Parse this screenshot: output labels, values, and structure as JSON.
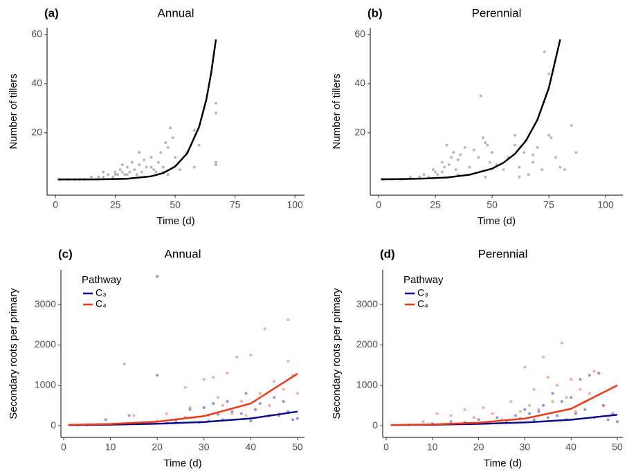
{
  "chart_data": [
    {
      "type": "scatter",
      "panel": "(a)",
      "title": "Annual",
      "xlabel": "Time (d)",
      "ylabel": "Number of tillers",
      "xlim": [
        -3.5,
        104
      ],
      "ylim": [
        -5.4,
        62.8
      ],
      "xticks": [
        0,
        25,
        50,
        75,
        100
      ],
      "yticks": [
        20,
        40,
        60
      ],
      "series": [
        {
          "color": "#000000",
          "point_color": "#7f7f7f",
          "points": {
            "x": [
              2,
              5,
              8,
              10,
              12,
              15,
              17,
              18,
              20,
              22,
              24,
              25,
              26,
              27,
              28,
              29,
              30,
              31,
              32,
              33,
              34,
              35,
              36,
              37,
              38,
              40,
              41,
              42,
              43,
              44,
              45,
              46,
              47,
              48,
              49,
              50,
              52,
              55,
              58,
              58,
              60,
              67,
              67,
              67,
              67,
              30,
              35,
              28,
              40,
              45,
              25,
              20,
              47
            ],
            "values": [
              1,
              1,
              1,
              1,
              1,
              2,
              1,
              2,
              2,
              3,
              2,
              4,
              3,
              5,
              4,
              3,
              6,
              4,
              8,
              5,
              3,
              7,
              4,
              9,
              6,
              10,
              5,
              4,
              8,
              12,
              6,
              16,
              14,
              22,
              18,
              10,
              5,
              12,
              6,
              21,
              15,
              32,
              28,
              8,
              7,
              3,
              12,
              7,
              6,
              4,
              3,
              4,
              3
            ]
          },
          "fit": {
            "x": [
              1,
              10,
              20,
              30,
              40,
              45,
              50,
              55,
              60,
              63,
              65,
              67
            ],
            "values": [
              1.0,
              1.0,
              1.08,
              1.32,
              2.3,
              3.6,
              6.3,
              11.6,
              22.4,
              33.5,
              44.1,
              58
            ]
          }
        }
      ]
    },
    {
      "type": "scatter",
      "panel": "(b)",
      "title": "Perennial",
      "xlabel": "Time (d)",
      "ylabel": "Number of tillers",
      "xlim": [
        -3.7,
        107.6
      ],
      "ylim": [
        -5.4,
        62.8
      ],
      "xticks": [
        0,
        25,
        50,
        75,
        100
      ],
      "yticks": [
        20,
        40,
        60
      ],
      "series": [
        {
          "color": "#000000",
          "point_color": "#7f7f7f",
          "points": {
            "x": [
              2,
              6,
              10,
              14,
              18,
              20,
              22,
              24,
              25,
              26,
              28,
              29,
              30,
              31,
              32,
              33,
              34,
              35,
              36,
              38,
              40,
              42,
              44,
              45,
              46,
              48,
              49,
              50,
              52,
              55,
              57,
              60,
              60,
              62,
              64,
              65,
              66,
              68,
              70,
              72,
              73,
              75,
              76,
              78,
              80,
              82,
              85,
              87,
              35,
              28,
              47,
              47,
              62,
              68,
              75
            ],
            "values": [
              1,
              1,
              1,
              2,
              2,
              3,
              2,
              5,
              4,
              3,
              8,
              6,
              15,
              7,
              10,
              12,
              5,
              9,
              11,
              14,
              6,
              13,
              10,
              35,
              18,
              15,
              8,
              12,
              7,
              5,
              10,
              19,
              15,
              6,
              12,
              17,
              3,
              8,
              14,
              5,
              53,
              44,
              18,
              10,
              6,
              5,
              23,
              12,
              3,
              4,
              16,
              2,
              2,
              11,
              19
            ]
          },
          "fit": {
            "x": [
              1,
              10,
              20,
              30,
              40,
              50,
              55,
              60,
              65,
              70,
              75,
              80
            ],
            "values": [
              1.07,
              1.15,
              1.35,
              1.8,
              2.9,
              5.4,
              7.8,
              11.4,
              16.9,
              25.4,
              38.3,
              58
            ]
          }
        }
      ]
    },
    {
      "type": "scatter",
      "panel": "(c)",
      "title": "Annual",
      "xlabel": "Time (d)",
      "ylabel": "Secondary roots per primary",
      "xlim": [
        -0.6,
        51.5
      ],
      "ylim": [
        -290,
        3860
      ],
      "xticks": [
        0,
        10,
        20,
        30,
        40,
        50
      ],
      "yticks": [
        0,
        1000,
        2000,
        3000
      ],
      "legend_title": "Pathway",
      "legend_position": "top-left",
      "series": [
        {
          "name": "C₃",
          "color": "#0c0c8a",
          "point_color": "#3a3acf",
          "points": {
            "x": [
              5,
              9,
              14,
              16,
              20,
              20,
              22,
              24,
              26,
              27,
              29,
              30,
              31,
              32,
              33,
              34,
              35,
              36,
              38,
              39,
              40,
              41,
              42,
              44,
              45,
              46,
              47,
              48,
              49,
              50
            ],
            "values": [
              20,
              150,
              250,
              50,
              1250,
              3700,
              60,
              100,
              200,
              400,
              80,
              450,
              120,
              550,
              280,
              150,
              600,
              350,
              300,
              800,
              120,
              400,
              550,
              250,
              700,
              250,
              600,
              350,
              150,
              180
            ]
          },
          "fit": {
            "x": [
              1,
              10,
              20,
              30,
              40,
              50
            ],
            "values": [
              13,
              25,
              48,
              93,
              180,
              350
            ]
          }
        },
        {
          "name": "C₄",
          "color": "#ee3a16",
          "point_color": "#f56a4a",
          "points": {
            "x": [
              3,
              8,
              13,
              15,
              18,
              20,
              22,
              24,
              26,
              27,
              28,
              30,
              31,
              32,
              33,
              34,
              35,
              36,
              37,
              38,
              39,
              40,
              41,
              42,
              43,
              44,
              45,
              46,
              47,
              48,
              48,
              49,
              50
            ],
            "values": [
              10,
              30,
              1530,
              250,
              60,
              120,
              300,
              150,
              950,
              450,
              200,
              1150,
              250,
              1200,
              700,
              500,
              1300,
              300,
              1700,
              600,
              250,
              1750,
              400,
              800,
              2400,
              500,
              1100,
              300,
              900,
              2620,
              1600,
              1250,
              800
            ]
          },
          "fit": {
            "x": [
              1,
              10,
              20,
              30,
              40,
              50
            ],
            "values": [
              20,
              43,
              101,
              236,
              550,
              1290
            ]
          }
        }
      ]
    },
    {
      "type": "scatter",
      "panel": "(d)",
      "title": "Perennial",
      "xlabel": "Time (d)",
      "ylabel": "Secondary roots per primary",
      "xlim": [
        -0.75,
        51.2
      ],
      "ylim": [
        -290,
        3860
      ],
      "xticks": [
        0,
        10,
        20,
        30,
        40,
        50
      ],
      "yticks": [
        0,
        1000,
        2000,
        3000
      ],
      "legend_title": "Pathway",
      "legend_position": "top-left",
      "series": [
        {
          "name": "C₃",
          "color": "#0c0c8a",
          "point_color": "#3a3acf",
          "points": {
            "x": [
              5,
              10,
              14,
              17,
              20,
              22,
              24,
              26,
              28,
              29,
              30,
              31,
              32,
              33,
              34,
              35,
              36,
              37,
              38,
              39,
              40,
              41,
              42,
              43,
              44,
              45,
              46,
              47,
              48,
              49,
              50
            ],
            "values": [
              20,
              50,
              100,
              80,
              150,
              60,
              200,
              120,
              250,
              180,
              400,
              300,
              150,
              350,
              500,
              200,
              800,
              250,
              600,
              150,
              700,
              300,
              1150,
              400,
              1250,
              200,
              1300,
              500,
              150,
              300,
              100
            ]
          },
          "fit": {
            "x": [
              1,
              10,
              20,
              30,
              40,
              50
            ],
            "values": [
              13,
              24,
              45,
              81,
              148,
              270
            ]
          }
        },
        {
          "name": "C₄",
          "color": "#ee3a16",
          "point_color": "#f56a4a",
          "points": {
            "x": [
              8,
              11,
              14,
              17,
              19,
              21,
              23,
              25,
              27,
              29,
              30,
              31,
              32,
              33,
              34,
              35,
              36,
              37,
              38,
              39,
              40,
              41,
              42,
              43,
              44,
              45,
              46,
              47
            ],
            "values": [
              100,
              300,
              250,
              400,
              200,
              450,
              300,
              150,
              600,
              350,
              1450,
              500,
              900,
              400,
              1700,
              1200,
              600,
              1000,
              2050,
              700,
              1150,
              350,
              900,
              600,
              800,
              1350,
              1300,
              500
            ]
          },
          "fit": {
            "x": [
              1,
              10,
              20,
              30,
              40,
              50
            ],
            "values": [
              14,
              31,
              74,
              176,
              420,
              1000
            ]
          }
        }
      ]
    }
  ]
}
